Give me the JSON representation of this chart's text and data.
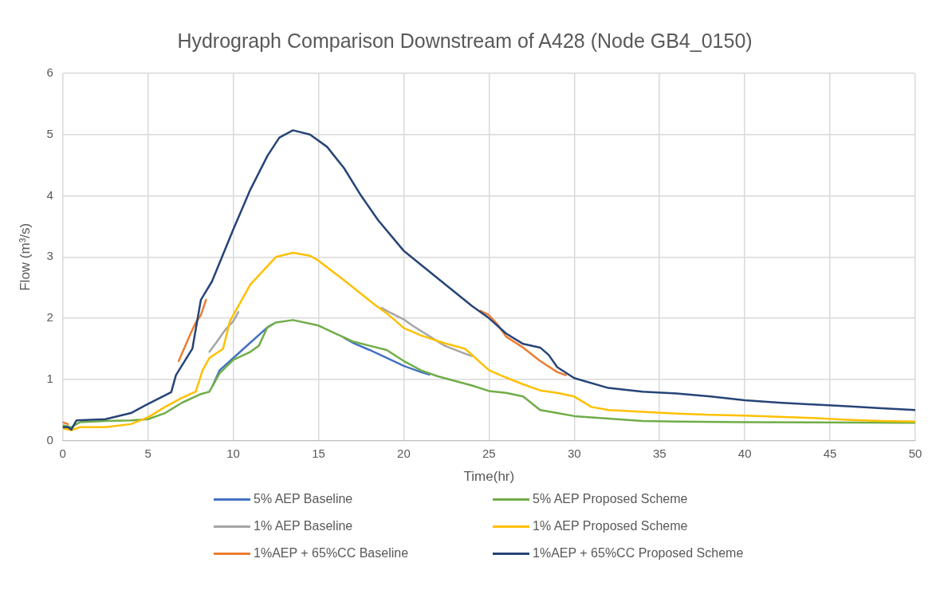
{
  "chart_data": {
    "type": "line",
    "title": "Hydrograph Comparison Downstream of A428 (Node GB4_0150)",
    "xlabel": "Time(hr)",
    "ylabel": "Flow (m³/s)",
    "xlim": [
      0,
      50
    ],
    "xticks": [
      0,
      5,
      10,
      15,
      20,
      25,
      30,
      35,
      40,
      45,
      50
    ],
    "ylim": [
      0,
      6
    ],
    "yticks": [
      0,
      1,
      2,
      3,
      4,
      5,
      6
    ],
    "grid": true,
    "legend": "bottom",
    "marker": "none",
    "line_style": "solid",
    "series": [
      {
        "name": "5% AEP Baseline",
        "color": "#4472c4",
        "x": [
          8.8,
          9.2,
          10,
          11,
          12,
          12.3,
          14,
          16.5,
          17,
          18,
          19,
          20,
          21,
          21.5
        ],
        "values": [
          0.9,
          1.15,
          1.35,
          1.6,
          1.85,
          1.9,
          null,
          1.68,
          1.6,
          1.48,
          1.35,
          1.22,
          1.12,
          1.08
        ]
      },
      {
        "name": "5% AEP Proposed Scheme",
        "color": "#70ad47",
        "x": [
          0,
          0.5,
          1,
          2.5,
          4,
          5,
          6,
          7,
          8,
          8.6,
          9.2,
          10,
          11,
          11.5,
          12,
          12.5,
          13.5,
          15,
          16,
          17,
          18,
          19,
          20,
          21,
          22,
          24,
          25,
          26,
          27,
          28,
          29,
          30,
          32,
          34,
          36,
          40,
          50
        ],
        "values": [
          0.25,
          0.22,
          0.3,
          0.32,
          0.33,
          0.35,
          0.45,
          0.62,
          0.75,
          0.8,
          1.1,
          1.32,
          1.45,
          1.55,
          1.85,
          1.93,
          1.97,
          1.88,
          1.75,
          1.62,
          1.55,
          1.48,
          1.3,
          1.15,
          1.05,
          0.9,
          0.81,
          0.78,
          0.72,
          0.5,
          0.45,
          0.4,
          0.36,
          0.32,
          0.31,
          0.3,
          0.29
        ]
      },
      {
        "name": "1% AEP Baseline",
        "color": "#a5a5a5",
        "x": [
          8.6,
          9,
          9.5,
          10,
          10.3,
          14,
          18.7,
          19,
          20,
          20.5,
          22.4,
          23.6,
          24
        ],
        "values": [
          1.45,
          1.6,
          1.8,
          1.95,
          2.1,
          null,
          2.17,
          2.12,
          1.98,
          1.88,
          1.55,
          1.42,
          1.38
        ]
      },
      {
        "name": "1% AEP Proposed Scheme",
        "color": "#ffc000",
        "x": [
          0,
          0.5,
          1,
          2.5,
          4,
          5,
          6,
          7,
          7.8,
          8.2,
          8.6,
          9.4,
          9.8,
          10.5,
          11,
          12,
          12.5,
          13.5,
          14.5,
          15,
          16.5,
          18.3,
          19,
          20,
          21,
          22.4,
          23.6,
          25,
          26,
          27,
          28,
          29,
          30,
          31,
          32,
          34,
          36,
          38,
          40,
          42,
          44,
          46,
          48,
          50
        ],
        "values": [
          0.2,
          0.17,
          0.22,
          0.22,
          0.27,
          0.38,
          0.55,
          0.7,
          0.8,
          1.15,
          1.35,
          1.5,
          1.95,
          2.3,
          2.55,
          2.85,
          3.0,
          3.07,
          3.02,
          2.94,
          2.62,
          2.22,
          2.08,
          1.84,
          1.72,
          1.59,
          1.5,
          1.15,
          1.03,
          0.92,
          0.82,
          0.78,
          0.72,
          0.55,
          0.5,
          0.47,
          0.44,
          0.42,
          0.41,
          0.39,
          0.37,
          0.34,
          0.32,
          0.31
        ]
      },
      {
        "name": "1%AEP + 65%CC Baseline",
        "color": "#ed7d31",
        "x": [
          0,
          0.3,
          3,
          6.8,
          7.5,
          7.8,
          8.1,
          8.4,
          16,
          24.5,
          25,
          25.5,
          26,
          27,
          28,
          29,
          29.5
        ],
        "values": [
          0.3,
          0.27,
          null,
          1.3,
          1.75,
          1.93,
          2.05,
          2.3,
          null,
          2.12,
          2.05,
          1.9,
          1.7,
          1.52,
          1.3,
          1.12,
          1.07
        ]
      },
      {
        "name": "1%AEP + 65%CC Proposed Scheme",
        "color": "#264478",
        "x": [
          0,
          0.3,
          0.5,
          0.8,
          2.5,
          4,
          5,
          6.36,
          6.64,
          7.6,
          8.1,
          8.75,
          10,
          11,
          12,
          12.7,
          13.5,
          14.5,
          15.5,
          16.5,
          17.5,
          18.5,
          20,
          22,
          24,
          25,
          26,
          27,
          28,
          28.5,
          29,
          30,
          32,
          34,
          36,
          38,
          40,
          42,
          44,
          46,
          48,
          50
        ],
        "values": [
          0.22,
          0.22,
          0.18,
          0.33,
          0.35,
          0.45,
          0.6,
          0.79,
          1.07,
          1.5,
          2.3,
          2.6,
          3.45,
          4.1,
          4.65,
          4.95,
          5.07,
          5.0,
          4.8,
          4.45,
          4.0,
          3.6,
          3.1,
          2.65,
          2.2,
          2.0,
          1.75,
          1.58,
          1.52,
          1.4,
          1.2,
          1.02,
          0.86,
          0.8,
          0.77,
          0.72,
          0.66,
          0.62,
          0.59,
          0.56,
          0.53,
          0.5
        ]
      }
    ]
  }
}
